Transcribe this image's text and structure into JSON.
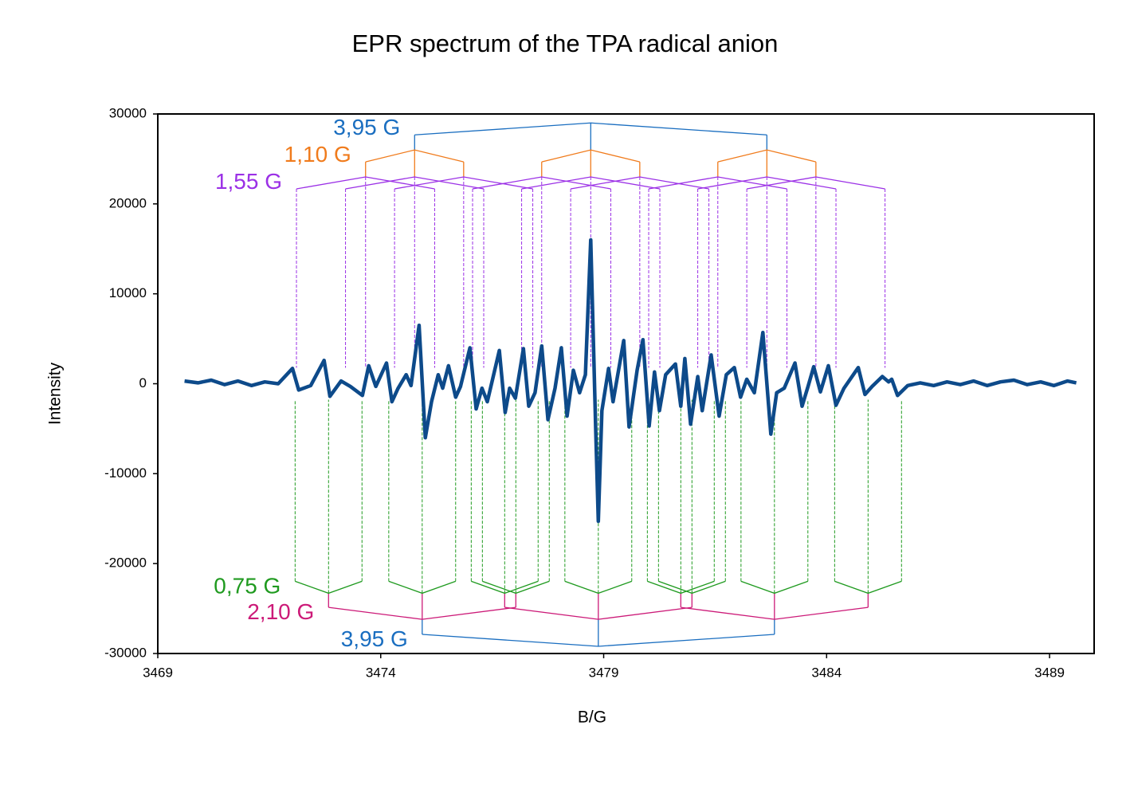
{
  "chart_data": {
    "type": "line",
    "title": "EPR spectrum of the TPA radical anion",
    "xlabel": "B/G",
    "ylabel": "Intensity",
    "xlim": [
      3469,
      3490
    ],
    "ylim": [
      -30000,
      30000
    ],
    "xticks": [
      3469,
      3474,
      3479,
      3484,
      3489
    ],
    "yticks": [
      -30000,
      -20000,
      -10000,
      0,
      10000,
      20000,
      30000
    ],
    "color": "#0d4a8a",
    "x": [
      3469.6,
      3469.9,
      3470.2,
      3470.5,
      3470.8,
      3471.1,
      3471.4,
      3471.7,
      3472.02,
      3472.16,
      3472.43,
      3472.73,
      3472.86,
      3473.11,
      3473.32,
      3473.59,
      3473.73,
      3473.89,
      3474.13,
      3474.25,
      3474.39,
      3474.57,
      3474.68,
      3474.86,
      3475.0,
      3475.14,
      3475.29,
      3475.39,
      3475.52,
      3475.68,
      3475.79,
      3476.0,
      3476.14,
      3476.27,
      3476.39,
      3476.66,
      3476.79,
      3476.89,
      3477.02,
      3477.2,
      3477.32,
      3477.46,
      3477.61,
      3477.75,
      3477.91,
      3478.05,
      3478.18,
      3478.32,
      3478.46,
      3478.59,
      3478.71,
      3478.82,
      3478.88,
      3478.96,
      3479.11,
      3479.21,
      3479.45,
      3479.57,
      3479.75,
      3479.88,
      3480.02,
      3480.14,
      3480.25,
      3480.39,
      3480.61,
      3480.73,
      3480.82,
      3480.95,
      3481.11,
      3481.21,
      3481.41,
      3481.59,
      3481.75,
      3481.93,
      3482.07,
      3482.21,
      3482.38,
      3482.57,
      3482.75,
      3482.88,
      3483.05,
      3483.29,
      3483.45,
      3483.59,
      3483.71,
      3483.86,
      3484.04,
      3484.21,
      3484.39,
      3484.71,
      3484.86,
      3485.02,
      3485.25,
      3485.39,
      3485.46,
      3485.59,
      3485.82,
      3486.1,
      3486.4,
      3486.7,
      3487.0,
      3487.3,
      3487.6,
      3487.9,
      3488.2,
      3488.5,
      3488.8,
      3489.1,
      3489.4,
      3489.6
    ],
    "values": [
      300,
      100,
      400,
      -100,
      300,
      -200,
      200,
      0,
      1700,
      -700,
      -200,
      2600,
      -1400,
      300,
      -300,
      -1300,
      2000,
      -300,
      2300,
      -2000,
      -500,
      1000,
      -200,
      6500,
      -6000,
      -2000,
      1000,
      -500,
      2000,
      -1500,
      -300,
      4000,
      -2800,
      -500,
      -2000,
      3700,
      -3200,
      -500,
      -1600,
      3900,
      -2500,
      -1000,
      4200,
      -4000,
      -500,
      4000,
      -3600,
      1500,
      -1000,
      1000,
      16000,
      -5000,
      -15300,
      -3000,
      1700,
      -2000,
      4800,
      -4800,
      1500,
      4900,
      -4700,
      1300,
      -3000,
      1000,
      2200,
      -2500,
      2800,
      -4500,
      800,
      -3000,
      3200,
      -3600,
      1000,
      1800,
      -1500,
      500,
      -1000,
      5700,
      -5600,
      -1000,
      -500,
      2300,
      -2500,
      -200,
      1900,
      -900,
      2000,
      -2400,
      -500,
      1800,
      -1200,
      -300,
      800,
      200,
      500,
      -1300,
      -200,
      100,
      -200,
      200,
      -100,
      300,
      -200,
      200,
      400,
      -100,
      200,
      -200,
      300,
      100
    ],
    "trees": [
      {
        "center": 3478.71,
        "levels": [
          {
            "label": "3,95 G",
            "splitting": 3.95,
            "color": "#1a6ec0",
            "y": 29000
          },
          {
            "label": "1,10 G",
            "splitting": 1.1,
            "color": "#f07b1c",
            "y": 26000
          },
          {
            "label": "1,55 G",
            "splitting": 1.55,
            "color": "#9b30e6",
            "y": 23000
          }
        ]
      },
      {
        "center": 3478.88,
        "levels": [
          {
            "label": "3,95 G",
            "splitting": 3.95,
            "color": "#1a6ec0",
            "y": -29200
          },
          {
            "label": "2,10 G",
            "splitting": 2.1,
            "color": "#cc1a78",
            "y": -26200
          },
          {
            "label": "0,75 G",
            "splitting": 0.75,
            "color": "#1f9a1f",
            "y": -23300
          }
        ]
      }
    ]
  }
}
